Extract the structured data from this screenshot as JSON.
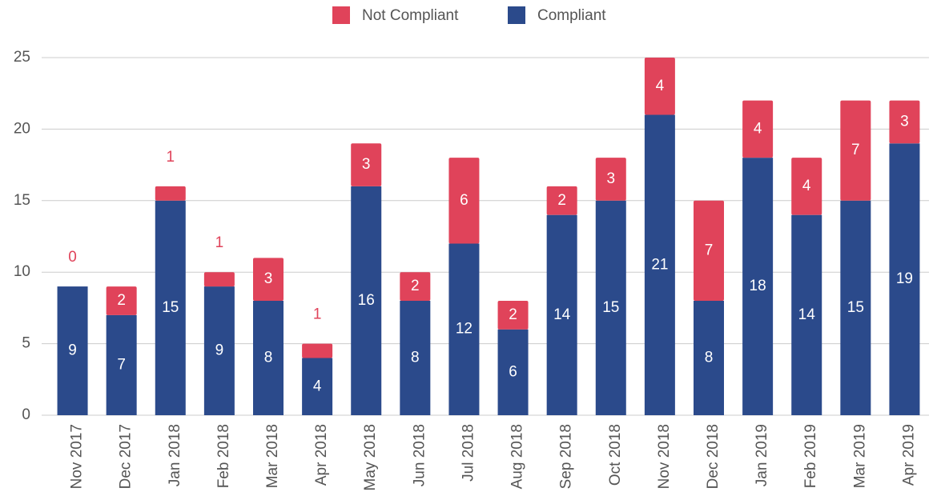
{
  "chart_data": {
    "type": "stacked_bar",
    "categories": [
      "Nov 2017",
      "Dec 2017",
      "Jan 2018",
      "Feb 2018",
      "Mar 2018",
      "Apr 2018",
      "May 2018",
      "Jun 2018",
      "Jul 2018",
      "Aug 2018",
      "Sep 2018",
      "Oct 2018",
      "Nov 2018",
      "Dec 2018",
      "Jan 2019",
      "Feb 2019",
      "Mar 2019",
      "Apr 2019"
    ],
    "series": [
      {
        "name": "Compliant",
        "color": "#2b4a8b",
        "values": [
          9,
          7,
          15,
          9,
          8,
          4,
          16,
          8,
          12,
          6,
          14,
          15,
          21,
          8,
          18,
          14,
          15,
          19
        ]
      },
      {
        "name": "Not Compliant",
        "color": "#e0435a",
        "values": [
          0,
          2,
          1,
          1,
          3,
          1,
          3,
          2,
          6,
          2,
          2,
          3,
          4,
          7,
          4,
          4,
          7,
          3
        ]
      }
    ],
    "legend_order": [
      "Not Compliant",
      "Compliant"
    ],
    "ylim": [
      0,
      25
    ],
    "yticks": [
      0,
      5,
      10,
      15,
      20,
      25
    ],
    "grid": true,
    "legend": "top"
  }
}
